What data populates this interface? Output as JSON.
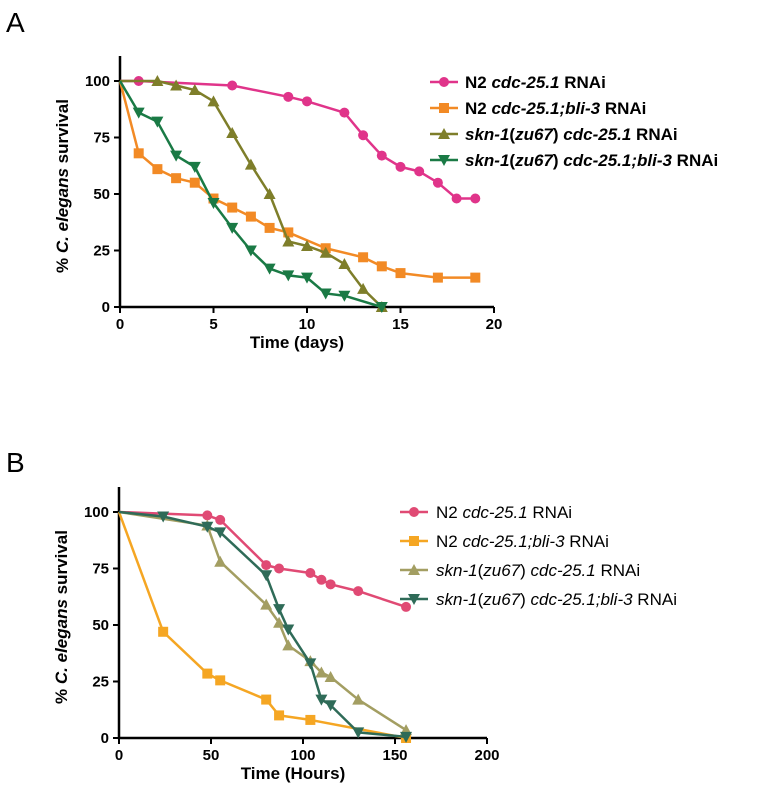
{
  "chart_data": [
    {
      "panel": "A",
      "type": "line",
      "xlabel": "Time (days)",
      "ylabel_parts": [
        {
          "t": "% ",
          "i": false
        },
        {
          "t": "C. elegans",
          "i": true
        },
        {
          "t": " survival",
          "i": false
        }
      ],
      "xlim": [
        0,
        20
      ],
      "ylim": [
        0,
        100
      ],
      "xticks": [
        0,
        5,
        10,
        15,
        20
      ],
      "yticks": [
        0,
        25,
        50,
        75,
        100
      ],
      "legend_style": "bold",
      "series": [
        {
          "name_parts": [
            {
              "t": "N2 ",
              "i": false
            },
            {
              "t": "cdc-25.1",
              "i": true
            },
            {
              "t": " RNAi",
              "i": false
            }
          ],
          "color": "#e0348a",
          "marker": "circle",
          "x": [
            0,
            1,
            6,
            9,
            10,
            12,
            13,
            14,
            15,
            16,
            17,
            18,
            19
          ],
          "y": [
            100,
            100,
            98,
            93,
            91,
            86,
            76,
            67,
            62,
            60,
            55,
            48,
            48
          ]
        },
        {
          "name_parts": [
            {
              "t": "N2 ",
              "i": false
            },
            {
              "t": "cdc-25.1;bli-3",
              "i": true
            },
            {
              "t": " RNAi",
              "i": false
            }
          ],
          "color": "#f28a25",
          "marker": "square",
          "x": [
            0,
            1,
            2,
            3,
            4,
            5,
            6,
            7,
            8,
            9,
            11,
            13,
            14,
            15,
            17,
            19
          ],
          "y": [
            100,
            68,
            61,
            57,
            55,
            48,
            44,
            40,
            35,
            33,
            26,
            22,
            18,
            15,
            13,
            13
          ]
        },
        {
          "name_parts": [
            {
              "t": "skn-1",
              "i": true
            },
            {
              "t": "(",
              "i": false
            },
            {
              "t": "zu67",
              "i": true
            },
            {
              "t": ") ",
              "i": false
            },
            {
              "t": "cdc-25.1",
              "i": true
            },
            {
              "t": " RNAi",
              "i": false
            }
          ],
          "color": "#7e7e2a",
          "marker": "triangle-up",
          "x": [
            0,
            2,
            3,
            4,
            5,
            6,
            7,
            8,
            9,
            10,
            11,
            12,
            13,
            14
          ],
          "y": [
            100,
            100,
            98,
            96,
            91,
            77,
            63,
            50,
            29,
            27,
            24,
            19,
            8,
            0
          ]
        },
        {
          "name_parts": [
            {
              "t": "skn-1",
              "i": true
            },
            {
              "t": "(",
              "i": false
            },
            {
              "t": "zu67",
              "i": true
            },
            {
              "t": ") ",
              "i": false
            },
            {
              "t": "cdc-25.1;bli-3",
              "i": true
            },
            {
              "t": " RNAi",
              "i": false
            }
          ],
          "color": "#1a7a45",
          "marker": "triangle-down",
          "x": [
            0,
            1,
            2,
            3,
            4,
            5,
            6,
            7,
            8,
            9,
            10,
            11,
            12,
            14
          ],
          "y": [
            100,
            86,
            82,
            67,
            62,
            46,
            35,
            25,
            17,
            14,
            13,
            6,
            5,
            0
          ]
        }
      ]
    },
    {
      "panel": "B",
      "type": "line",
      "xlabel": "Time (Hours)",
      "ylabel_parts": [
        {
          "t": "% ",
          "i": false
        },
        {
          "t": "C. elegans",
          "i": true
        },
        {
          "t": " survival",
          "i": false
        }
      ],
      "xlim": [
        0,
        200
      ],
      "ylim": [
        0,
        100
      ],
      "xticks": [
        0,
        50,
        100,
        150,
        200
      ],
      "yticks": [
        0,
        25,
        50,
        75,
        100
      ],
      "legend_style": "normal",
      "series": [
        {
          "name_parts": [
            {
              "t": "N2 ",
              "i": false
            },
            {
              "t": "cdc-25.1",
              "i": true
            },
            {
              "t": " RNAi",
              "i": false
            }
          ],
          "color": "#e04a74",
          "marker": "circle",
          "x": [
            0,
            48,
            55,
            80,
            87,
            104,
            110,
            115,
            130,
            156
          ],
          "y": [
            100,
            98.5,
            96.5,
            76.5,
            75,
            73,
            70,
            68,
            65,
            58
          ]
        },
        {
          "name_parts": [
            {
              "t": "N2 ",
              "i": false
            },
            {
              "t": "cdc-25.1;bli-3",
              "i": true
            },
            {
              "t": " RNAi",
              "i": false
            }
          ],
          "color": "#f5a623",
          "marker": "square",
          "x": [
            0,
            24,
            48,
            55,
            80,
            87,
            104,
            156
          ],
          "y": [
            100,
            47,
            28.5,
            25.5,
            17,
            10,
            8,
            0
          ]
        },
        {
          "name_parts": [
            {
              "t": "skn-1",
              "i": true
            },
            {
              "t": "(",
              "i": false
            },
            {
              "t": "zu67",
              "i": true
            },
            {
              "t": ") ",
              "i": false
            },
            {
              "t": "cdc-25.1",
              "i": true
            },
            {
              "t": " RNAi",
              "i": false
            }
          ],
          "color": "#a39e62",
          "marker": "triangle-up",
          "x": [
            0,
            48,
            55,
            80,
            87,
            92,
            104,
            110,
            115,
            130,
            156
          ],
          "y": [
            100,
            94,
            78,
            59,
            51,
            41,
            34,
            29,
            27,
            17,
            3.5
          ]
        },
        {
          "name_parts": [
            {
              "t": "skn-1",
              "i": true
            },
            {
              "t": "(",
              "i": false
            },
            {
              "t": "zu67",
              "i": true
            },
            {
              "t": ") ",
              "i": false
            },
            {
              "t": "cdc-25.1;bli-3",
              "i": true
            },
            {
              "t": " RNAi",
              "i": false
            }
          ],
          "color": "#2f6b58",
          "marker": "triangle-down",
          "x": [
            0,
            24,
            48,
            55,
            80,
            87,
            92,
            104,
            110,
            115,
            130,
            156
          ],
          "y": [
            100,
            98,
            93.5,
            91,
            72,
            57,
            48,
            33,
            17,
            14.5,
            2.5,
            0.5
          ]
        }
      ]
    }
  ]
}
